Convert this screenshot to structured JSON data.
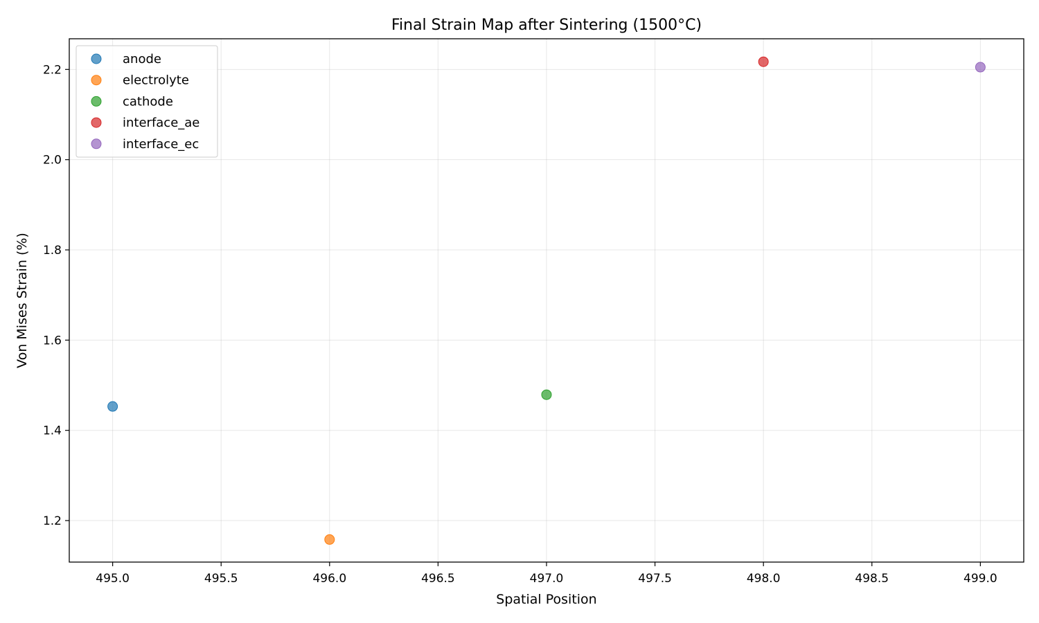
{
  "chart_data": {
    "type": "scatter",
    "title": "Final Strain Map after Sintering (1500°C)",
    "xlabel": "Spatial Position",
    "ylabel": "Von Mises Strain (%)",
    "xlim": [
      494.8,
      499.2
    ],
    "ylim": [
      1.108,
      2.268
    ],
    "xticks": [
      "495.0",
      "495.5",
      "496.0",
      "496.5",
      "497.0",
      "497.5",
      "498.0",
      "498.5",
      "499.0"
    ],
    "yticks": [
      "1.2",
      "1.4",
      "1.6",
      "1.8",
      "2.0",
      "2.2"
    ],
    "grid": true,
    "legend_position": "upper-left",
    "series": [
      {
        "name": "anode",
        "color": "#1f77b4",
        "x": [
          495.0
        ],
        "y": [
          1.453
        ]
      },
      {
        "name": "electrolyte",
        "color": "#ff7f0e",
        "x": [
          496.0
        ],
        "y": [
          1.158
        ]
      },
      {
        "name": "cathode",
        "color": "#2ca02c",
        "x": [
          497.0
        ],
        "y": [
          1.479
        ]
      },
      {
        "name": "interface_ae",
        "color": "#d62728",
        "x": [
          498.0
        ],
        "y": [
          2.217
        ]
      },
      {
        "name": "interface_ec",
        "color": "#9467bd",
        "x": [
          499.0
        ],
        "y": [
          2.205
        ]
      }
    ]
  }
}
